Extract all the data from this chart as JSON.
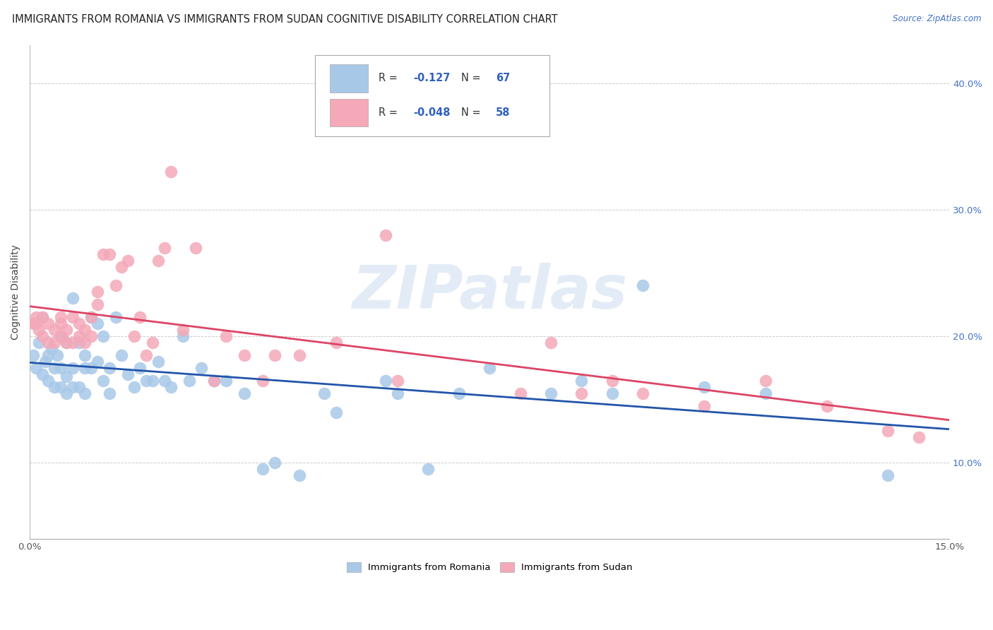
{
  "title": "IMMIGRANTS FROM ROMANIA VS IMMIGRANTS FROM SUDAN COGNITIVE DISABILITY CORRELATION CHART",
  "source": "Source: ZipAtlas.com",
  "ylabel": "Cognitive Disability",
  "xlim": [
    0.0,
    0.15
  ],
  "ylim": [
    0.04,
    0.43
  ],
  "xticks": [
    0.0,
    0.025,
    0.05,
    0.075,
    0.1,
    0.125,
    0.15
  ],
  "xticklabels_show": {
    "0.0": "0.0%",
    "0.15": "15.0%"
  },
  "yticks": [
    0.1,
    0.2,
    0.3,
    0.4
  ],
  "yticklabels_right": [
    "10.0%",
    "20.0%",
    "30.0%",
    "40.0%"
  ],
  "romania_color": "#a8c8e8",
  "sudan_color": "#f4a8b8",
  "romania_line_color": "#2255aa",
  "sudan_line_color": "#dd4466",
  "romania_N": 67,
  "sudan_N": 58,
  "romania_R": -0.127,
  "sudan_R": -0.048,
  "romania_x": [
    0.0005,
    0.001,
    0.0015,
    0.002,
    0.002,
    0.0025,
    0.003,
    0.003,
    0.0035,
    0.004,
    0.004,
    0.0045,
    0.005,
    0.005,
    0.005,
    0.006,
    0.006,
    0.006,
    0.007,
    0.007,
    0.007,
    0.008,
    0.008,
    0.009,
    0.009,
    0.009,
    0.01,
    0.01,
    0.011,
    0.011,
    0.012,
    0.012,
    0.013,
    0.013,
    0.014,
    0.015,
    0.016,
    0.017,
    0.018,
    0.019,
    0.02,
    0.021,
    0.022,
    0.023,
    0.025,
    0.026,
    0.028,
    0.03,
    0.032,
    0.035,
    0.038,
    0.04,
    0.044,
    0.048,
    0.05,
    0.058,
    0.06,
    0.065,
    0.07,
    0.075,
    0.085,
    0.09,
    0.095,
    0.1,
    0.11,
    0.12,
    0.14
  ],
  "romania_y": [
    0.185,
    0.175,
    0.195,
    0.17,
    0.215,
    0.18,
    0.185,
    0.165,
    0.19,
    0.175,
    0.16,
    0.185,
    0.2,
    0.175,
    0.16,
    0.195,
    0.168,
    0.155,
    0.23,
    0.175,
    0.16,
    0.195,
    0.16,
    0.175,
    0.185,
    0.155,
    0.215,
    0.175,
    0.21,
    0.18,
    0.165,
    0.2,
    0.155,
    0.175,
    0.215,
    0.185,
    0.17,
    0.16,
    0.175,
    0.165,
    0.165,
    0.18,
    0.165,
    0.16,
    0.2,
    0.165,
    0.175,
    0.165,
    0.165,
    0.155,
    0.095,
    0.1,
    0.09,
    0.155,
    0.14,
    0.165,
    0.155,
    0.095,
    0.155,
    0.175,
    0.155,
    0.165,
    0.155,
    0.24,
    0.16,
    0.155,
    0.09
  ],
  "sudan_x": [
    0.0005,
    0.001,
    0.001,
    0.0015,
    0.002,
    0.002,
    0.003,
    0.003,
    0.004,
    0.004,
    0.005,
    0.005,
    0.005,
    0.006,
    0.006,
    0.007,
    0.007,
    0.008,
    0.008,
    0.009,
    0.009,
    0.01,
    0.01,
    0.011,
    0.011,
    0.012,
    0.013,
    0.014,
    0.015,
    0.016,
    0.017,
    0.018,
    0.019,
    0.02,
    0.021,
    0.022,
    0.023,
    0.025,
    0.027,
    0.03,
    0.032,
    0.035,
    0.038,
    0.04,
    0.044,
    0.05,
    0.058,
    0.06,
    0.08,
    0.085,
    0.09,
    0.095,
    0.1,
    0.11,
    0.12,
    0.13,
    0.14,
    0.145
  ],
  "sudan_y": [
    0.21,
    0.21,
    0.215,
    0.205,
    0.2,
    0.215,
    0.195,
    0.21,
    0.205,
    0.195,
    0.2,
    0.21,
    0.215,
    0.195,
    0.205,
    0.215,
    0.195,
    0.2,
    0.21,
    0.195,
    0.205,
    0.2,
    0.215,
    0.235,
    0.225,
    0.265,
    0.265,
    0.24,
    0.255,
    0.26,
    0.2,
    0.215,
    0.185,
    0.195,
    0.26,
    0.27,
    0.33,
    0.205,
    0.27,
    0.165,
    0.2,
    0.185,
    0.165,
    0.185,
    0.185,
    0.195,
    0.28,
    0.165,
    0.155,
    0.195,
    0.155,
    0.165,
    0.155,
    0.145,
    0.165,
    0.145,
    0.125,
    0.12
  ],
  "background_color": "#ffffff",
  "grid_color": "#cccccc",
  "title_fontsize": 10.5,
  "tick_fontsize": 9.5,
  "legend_fontsize": 9.5,
  "watermark_text": "ZIPatlas",
  "watermark_color": "#ccddf0",
  "bottom_legend_labels": [
    "Immigrants from Romania",
    "Immigrants from Sudan"
  ]
}
